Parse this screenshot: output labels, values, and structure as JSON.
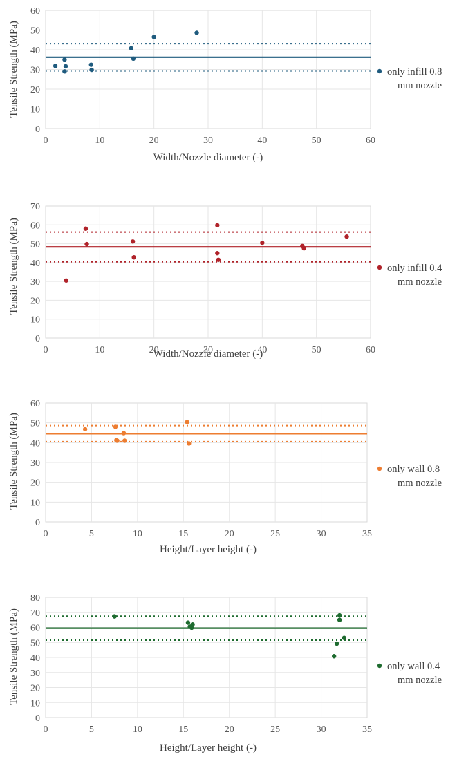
{
  "chart_data": [
    {
      "type": "scatter",
      "xlabel": "Width/Nozzle diameter (-)",
      "ylabel": "Tensile Strength (MPa)",
      "xlim": [
        0,
        60
      ],
      "ylim": [
        0,
        60
      ],
      "xticks": [
        "0",
        "10",
        "20",
        "30",
        "40",
        "50",
        "60"
      ],
      "yticks": [
        "0",
        "10",
        "20",
        "30",
        "40",
        "50",
        "60"
      ],
      "color": "#1f5b7e",
      "legend": {
        "line1": "only infill 0.8",
        "line2": "mm nozzle"
      },
      "mean": 36.2,
      "band": [
        29.3,
        43.1
      ],
      "points": [
        [
          1.8,
          31.8
        ],
        [
          3.5,
          35.0
        ],
        [
          3.5,
          29.0
        ],
        [
          3.7,
          31.6
        ],
        [
          8.4,
          32.4
        ],
        [
          8.5,
          29.8
        ],
        [
          15.8,
          40.8
        ],
        [
          16.2,
          35.5
        ],
        [
          20.0,
          46.5
        ],
        [
          27.9,
          48.6
        ]
      ]
    },
    {
      "type": "scatter",
      "xlabel": "Width/Nozzle diameter (-)",
      "ylabel": "Tensile Strength (MPa)",
      "xlim": [
        0,
        60
      ],
      "ylim": [
        0,
        70
      ],
      "xticks": [
        "0",
        "10",
        "20",
        "30",
        "40",
        "50",
        "60"
      ],
      "yticks": [
        "0",
        "10",
        "20",
        "30",
        "40",
        "50",
        "60",
        "70"
      ],
      "color": "#b0232a",
      "legend": {
        "line1": "only infill 0.4",
        "line2": "mm nozzle"
      },
      "mean": 48.3,
      "band": [
        40.4,
        56.2
      ],
      "points": [
        [
          3.8,
          30.5
        ],
        [
          7.4,
          58.0
        ],
        [
          7.6,
          49.8
        ],
        [
          16.1,
          51.2
        ],
        [
          16.3,
          42.8
        ],
        [
          31.7,
          59.8
        ],
        [
          31.7,
          45.0
        ],
        [
          31.9,
          41.5
        ],
        [
          40.0,
          50.5
        ],
        [
          47.4,
          48.8
        ],
        [
          47.7,
          47.6
        ],
        [
          55.6,
          53.8
        ]
      ]
    },
    {
      "type": "scatter",
      "xlabel": "Height/Layer height (-)",
      "ylabel": "Tensile Strength (MPa)",
      "xlim": [
        0,
        35
      ],
      "ylim": [
        0,
        60
      ],
      "xticks": [
        "0",
        "5",
        "10",
        "15",
        "20",
        "25",
        "30",
        "35"
      ],
      "yticks": [
        "0",
        "10",
        "20",
        "30",
        "40",
        "50",
        "60"
      ],
      "color": "#ed7d31",
      "legend": {
        "line1": "only wall 0.8",
        "line2": "mm nozzle"
      },
      "mean": 44.5,
      "band": [
        40.5,
        48.6
      ],
      "points": [
        [
          4.3,
          46.8
        ],
        [
          7.6,
          48.0
        ],
        [
          7.7,
          41.2
        ],
        [
          7.8,
          41.0
        ],
        [
          8.5,
          44.8
        ],
        [
          8.6,
          41.0
        ],
        [
          15.4,
          50.4
        ],
        [
          15.6,
          39.6
        ]
      ]
    },
    {
      "type": "scatter",
      "xlabel": "Height/Layer height (-)",
      "ylabel": "Tensile Strength (MPa)",
      "xlim": [
        0,
        35
      ],
      "ylim": [
        0,
        80
      ],
      "xticks": [
        "0",
        "5",
        "10",
        "15",
        "20",
        "25",
        "30",
        "35"
      ],
      "yticks": [
        "0",
        "10",
        "20",
        "30",
        "40",
        "50",
        "60",
        "70",
        "80"
      ],
      "color": "#1e6b2f",
      "legend": {
        "line1": "only wall 0.4",
        "line2": "mm nozzle"
      },
      "mean": 59.5,
      "band": [
        51.5,
        67.5
      ],
      "points": [
        [
          7.5,
          67.3
        ],
        [
          15.5,
          63.2
        ],
        [
          15.7,
          60.5
        ],
        [
          15.9,
          59.8
        ],
        [
          16.0,
          62.0
        ],
        [
          31.4,
          40.8
        ],
        [
          31.7,
          49.2
        ],
        [
          32.0,
          68.0
        ],
        [
          32.0,
          65.0
        ],
        [
          32.5,
          53.0
        ]
      ]
    }
  ]
}
